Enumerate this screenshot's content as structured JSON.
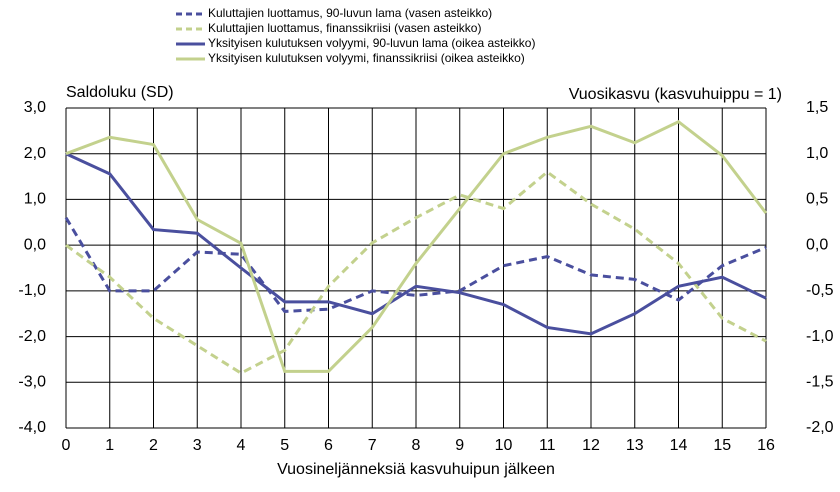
{
  "chart_data": {
    "type": "line",
    "y_label": "Saldoluku  (SD)",
    "y2_label": "Vuosikasvu  (kasvuhuippu = 1)",
    "x_label": "Vuosineljänneksiä  kasvuhuipun jälkeen",
    "x": [
      0,
      1,
      2,
      3,
      4,
      5,
      6,
      7,
      8,
      9,
      10,
      11,
      12,
      13,
      14,
      15,
      16
    ],
    "xlim": [
      0,
      16
    ],
    "xticks": [
      0,
      1,
      2,
      3,
      4,
      5,
      6,
      7,
      8,
      9,
      10,
      11,
      12,
      13,
      14,
      15,
      16
    ],
    "ylim": [
      -4,
      3
    ],
    "yticks": [
      {
        "value": -4,
        "label": "-4,0"
      },
      {
        "value": -3,
        "label": "-3,0"
      },
      {
        "value": -2,
        "label": "-2,0"
      },
      {
        "value": -1,
        "label": "-1,0"
      },
      {
        "value": 0,
        "label": "0,0"
      },
      {
        "value": 1,
        "label": "1,0"
      },
      {
        "value": 2,
        "label": "2,0"
      },
      {
        "value": 3,
        "label": "3,0"
      }
    ],
    "y2lim": [
      -2,
      1.5
    ],
    "y2ticks": [
      {
        "value": -2,
        "label": "-2,0"
      },
      {
        "value": -1.5,
        "label": "-1,5"
      },
      {
        "value": -1,
        "label": "-1,0"
      },
      {
        "value": -0.5,
        "label": "-0,5"
      },
      {
        "value": 0,
        "label": "0,0"
      },
      {
        "value": 0.5,
        "label": "0,5"
      },
      {
        "value": 1,
        "label": "1,0"
      },
      {
        "value": 1.5,
        "label": "1,5"
      }
    ],
    "grid": true,
    "series": [
      {
        "name": "Kuluttajien luottamus, 90-luvun lama (vasen asteikko)",
        "color": "#4a4f9e",
        "dashed": true,
        "values": [
          0.6,
          -1.0,
          -1.0,
          -0.15,
          -0.2,
          -1.45,
          -1.4,
          -1.0,
          -1.1,
          -1.0,
          -0.45,
          -0.25,
          -0.65,
          -0.75,
          -1.2,
          -0.45,
          -0.05
        ]
      },
      {
        "name": "Kuluttajien luottamus, finanssikriisi (vasen asteikko)",
        "color": "#c3d18d",
        "dashed": true,
        "values": [
          0.0,
          -0.7,
          -1.6,
          -2.2,
          -2.8,
          -2.3,
          -0.9,
          0.05,
          0.6,
          1.1,
          0.8,
          1.6,
          0.9,
          0.35,
          -0.4,
          -1.6,
          -2.1
        ]
      },
      {
        "name": "Yksityisen kulutuksen volyymi, 90-luvun lama (oikea asteikko)",
        "color": "#4a4f9e",
        "dashed": false,
        "axis": "y2",
        "values": [
          1.0,
          0.78,
          0.17,
          0.13,
          -0.25,
          -0.62,
          -0.62,
          -0.75,
          -0.45,
          -0.52,
          -0.65,
          -0.9,
          -0.97,
          -0.75,
          -0.45,
          -0.35,
          -0.58
        ]
      },
      {
        "name": "Yksityisen kulutuksen volyymi, finanssikriisi (oikea asteikko)",
        "color": "#c3d18d",
        "dashed": false,
        "axis": "y2",
        "values": [
          1.0,
          1.18,
          1.1,
          0.28,
          0.02,
          -1.38,
          -1.38,
          -0.9,
          -0.2,
          0.4,
          1.0,
          1.18,
          1.3,
          1.12,
          1.35,
          0.98,
          0.35
        ]
      }
    ]
  }
}
